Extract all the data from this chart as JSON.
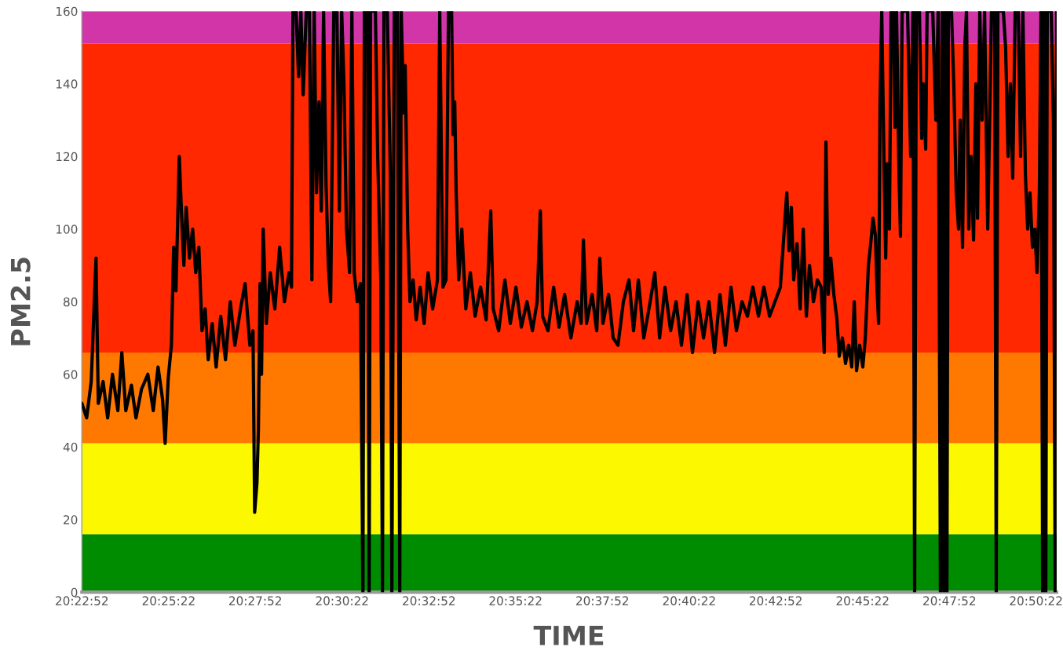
{
  "chart_data": {
    "type": "line",
    "xlabel": "TIME",
    "ylabel": "PM2.5",
    "xlim": [
      20.3811,
      20.8493
    ],
    "ylim": [
      0,
      160
    ],
    "yticks": [
      0,
      20,
      40,
      60,
      80,
      100,
      120,
      140,
      160
    ],
    "xticks": [
      {
        "value": 20.3811,
        "label": "20:22:52"
      },
      {
        "value": 20.4228,
        "label": "20:25:22"
      },
      {
        "value": 20.4644,
        "label": "20:27:52"
      },
      {
        "value": 20.5061,
        "label": "20:30:22"
      },
      {
        "value": 20.5478,
        "label": "20:32:52"
      },
      {
        "value": 20.5894,
        "label": "20:35:22"
      },
      {
        "value": 20.6311,
        "label": "20:37:52"
      },
      {
        "value": 20.6728,
        "label": "20:40:22"
      },
      {
        "value": 20.7144,
        "label": "20:42:52"
      },
      {
        "value": 20.7561,
        "label": "20:45:22"
      },
      {
        "value": 20.7978,
        "label": "20:47:52"
      },
      {
        "value": 20.8394,
        "label": "20:50:22"
      }
    ],
    "grid": false,
    "marker": "none",
    "line_style": "solid",
    "bands": [
      {
        "axis": "y",
        "from": 0,
        "to": 16,
        "color": "#008c00"
      },
      {
        "axis": "y",
        "from": 16,
        "to": 41,
        "color": "#fcf800"
      },
      {
        "axis": "y",
        "from": 41,
        "to": 66,
        "color": "#ff7800"
      },
      {
        "axis": "y",
        "from": 66,
        "to": 151,
        "color": "#ff2800"
      },
      {
        "axis": "y",
        "from": 151,
        "to": 160,
        "color": "#d135a8"
      }
    ],
    "series": [
      {
        "color": "#000000",
        "x": [
          20.3811,
          20.3834,
          20.3856,
          20.3879,
          20.389,
          20.3913,
          20.3935,
          20.3958,
          20.3984,
          20.4003,
          20.4022,
          20.4049,
          20.4071,
          20.4098,
          20.4128,
          20.4154,
          20.4177,
          20.4199,
          20.4211,
          20.4226,
          20.4241,
          20.4252,
          20.4263,
          20.4279,
          20.429,
          20.4301,
          20.4312,
          20.4328,
          20.4343,
          20.4358,
          20.4373,
          20.4388,
          20.4403,
          20.4418,
          20.4437,
          20.4456,
          20.4478,
          20.4501,
          20.4524,
          20.4546,
          20.4573,
          20.4595,
          20.4618,
          20.4633,
          20.4641,
          20.4652,
          20.4659,
          20.4667,
          20.4674,
          20.4682,
          20.4697,
          20.4716,
          20.4738,
          20.4761,
          20.4784,
          20.4806,
          20.4818,
          20.4825,
          20.484,
          20.4852,
          20.4863,
          20.4874,
          20.4889,
          20.4904,
          20.4916,
          20.4927,
          20.4938,
          20.495,
          20.4961,
          20.4972,
          20.4984,
          20.4995,
          20.5006,
          20.5021,
          20.5036,
          20.5048,
          20.5059,
          20.507,
          20.5082,
          20.5097,
          20.5108,
          20.5119,
          20.5134,
          20.5149,
          20.5161,
          20.5168,
          20.5183,
          20.5191,
          20.5198,
          20.5221,
          20.5232,
          20.5247,
          20.5255,
          20.5262,
          20.5278,
          20.5293,
          20.53,
          20.5312,
          20.5327,
          20.5338,
          20.5345,
          20.5357,
          20.5364,
          20.5376,
          20.5387,
          20.5402,
          20.5417,
          20.5436,
          20.5455,
          20.5474,
          20.5496,
          20.5519,
          20.553,
          20.5545,
          20.556,
          20.5572,
          20.5587,
          20.5594,
          20.5602,
          20.5609,
          20.5621,
          20.5636,
          20.5655,
          20.5677,
          20.57,
          20.5726,
          20.5753,
          20.5775,
          20.5787,
          20.5813,
          20.5843,
          20.5869,
          20.5896,
          20.5922,
          20.5949,
          20.5975,
          20.5998,
          20.6013,
          20.6024,
          20.605,
          20.6077,
          20.6103,
          20.613,
          20.616,
          20.619,
          20.6209,
          20.622,
          20.6235,
          20.6262,
          20.6284,
          20.6299,
          20.6314,
          20.6341,
          20.6363,
          20.6386,
          20.6412,
          20.6439,
          20.6461,
          20.6484,
          20.651,
          20.6541,
          20.6563,
          20.6586,
          20.6612,
          20.6639,
          20.6665,
          20.6691,
          20.6718,
          20.6744,
          20.6771,
          20.6797,
          20.6823,
          20.685,
          20.6876,
          20.6902,
          20.6929,
          20.6955,
          20.6982,
          20.7008,
          20.7034,
          20.7061,
          20.7087,
          20.7114,
          20.714,
          20.7166,
          20.7185,
          20.7197,
          20.7208,
          20.7219,
          20.723,
          20.7246,
          20.7261,
          20.7276,
          20.7291,
          20.7306,
          20.7325,
          20.7344,
          20.7362,
          20.7377,
          20.7385,
          20.7396,
          20.7408,
          20.7423,
          20.7438,
          20.7449,
          20.7464,
          20.7479,
          20.7494,
          20.7509,
          20.7521,
          20.7532,
          20.7547,
          20.7562,
          20.7574,
          20.7589,
          20.76,
          20.7611,
          20.7623,
          20.763,
          20.7638,
          20.7645,
          20.7653,
          20.7664,
          20.7672,
          20.7679,
          20.769,
          20.7698,
          20.7709,
          20.7717,
          20.7724,
          20.7736,
          20.7743,
          20.7751,
          20.7777,
          20.7792,
          20.7803,
          20.7811,
          20.7819,
          20.7834,
          20.7845,
          20.7852,
          20.7864,
          20.7871,
          20.7898,
          20.7913,
          20.7924,
          20.7935,
          20.7943,
          20.7951,
          20.7958,
          20.7966,
          20.7973,
          20.7988,
          20.7999,
          20.8011,
          20.8022,
          20.803,
          20.8041,
          20.8052,
          20.806,
          20.8071,
          20.8082,
          20.8094,
          20.8105,
          20.8113,
          20.8124,
          20.8135,
          20.8147,
          20.8162,
          20.8173,
          20.818,
          20.8195,
          20.8203,
          20.8211,
          20.8237,
          20.8248,
          20.826,
          20.8271,
          20.8282,
          20.8294,
          20.8309,
          20.832,
          20.8331,
          20.8343,
          20.8354,
          20.8365,
          20.8377,
          20.8388,
          20.8399,
          20.841,
          20.8418,
          20.8426,
          20.8433,
          20.8441,
          20.8448,
          20.8467,
          20.8478,
          20.8486,
          20.8493
        ],
        "values": [
          52,
          48,
          58,
          92,
          52,
          58,
          48,
          60,
          50,
          66,
          50,
          57,
          48,
          56,
          60,
          50,
          62,
          53,
          41,
          59,
          68,
          95,
          83,
          120,
          104,
          90,
          106,
          92,
          100,
          88,
          95,
          72,
          78,
          64,
          74,
          62,
          76,
          64,
          80,
          68,
          78,
          85,
          68,
          72,
          22,
          30,
          45,
          85,
          60,
          100,
          74,
          88,
          78,
          95,
          80,
          88,
          84,
          160,
          160,
          142,
          160,
          137,
          160,
          160,
          86,
          160,
          110,
          135,
          105,
          160,
          112,
          90,
          80,
          160,
          160,
          105,
          160,
          140,
          100,
          88,
          160,
          88,
          80,
          85,
          0,
          160,
          160,
          0,
          160,
          160,
          120,
          86,
          0,
          160,
          160,
          115,
          0,
          160,
          160,
          0,
          160,
          132,
          145,
          100,
          80,
          86,
          75,
          84,
          74,
          88,
          78,
          86,
          160,
          84,
          86,
          160,
          160,
          126,
          135,
          110,
          86,
          100,
          78,
          88,
          76,
          84,
          75,
          105,
          78,
          72,
          86,
          74,
          84,
          73,
          80,
          72,
          80,
          105,
          76,
          72,
          84,
          73,
          82,
          70,
          80,
          74,
          97,
          74,
          82,
          72,
          92,
          74,
          82,
          70,
          68,
          80,
          86,
          72,
          86,
          70,
          80,
          88,
          70,
          84,
          72,
          80,
          68,
          82,
          66,
          80,
          70,
          80,
          66,
          82,
          68,
          84,
          72,
          80,
          76,
          84,
          76,
          84,
          76,
          80,
          84,
          100,
          110,
          94,
          106,
          86,
          96,
          78,
          100,
          76,
          90,
          80,
          86,
          84,
          66,
          124,
          82,
          92,
          82,
          75,
          65,
          70,
          63,
          68,
          62,
          80,
          61,
          68,
          62,
          70,
          90,
          96,
          103,
          98,
          84,
          74,
          135,
          160,
          118,
          92,
          118,
          100,
          160,
          160,
          128,
          160,
          115,
          98,
          160,
          160,
          120,
          160,
          0,
          160,
          160,
          125,
          140,
          122,
          160,
          160,
          130,
          160,
          0,
          160,
          0,
          160,
          0,
          160,
          160,
          140,
          110,
          100,
          130,
          95,
          150,
          160,
          100,
          120,
          97,
          140,
          103,
          160,
          130,
          160,
          100,
          135,
          160,
          160,
          0,
          160,
          160,
          150,
          120,
          140,
          114,
          160,
          160,
          120,
          160,
          115,
          100,
          110,
          95,
          100,
          88,
          110,
          160,
          0,
          160,
          0,
          160,
          160,
          130,
          0,
          160
        ]
      }
    ]
  }
}
